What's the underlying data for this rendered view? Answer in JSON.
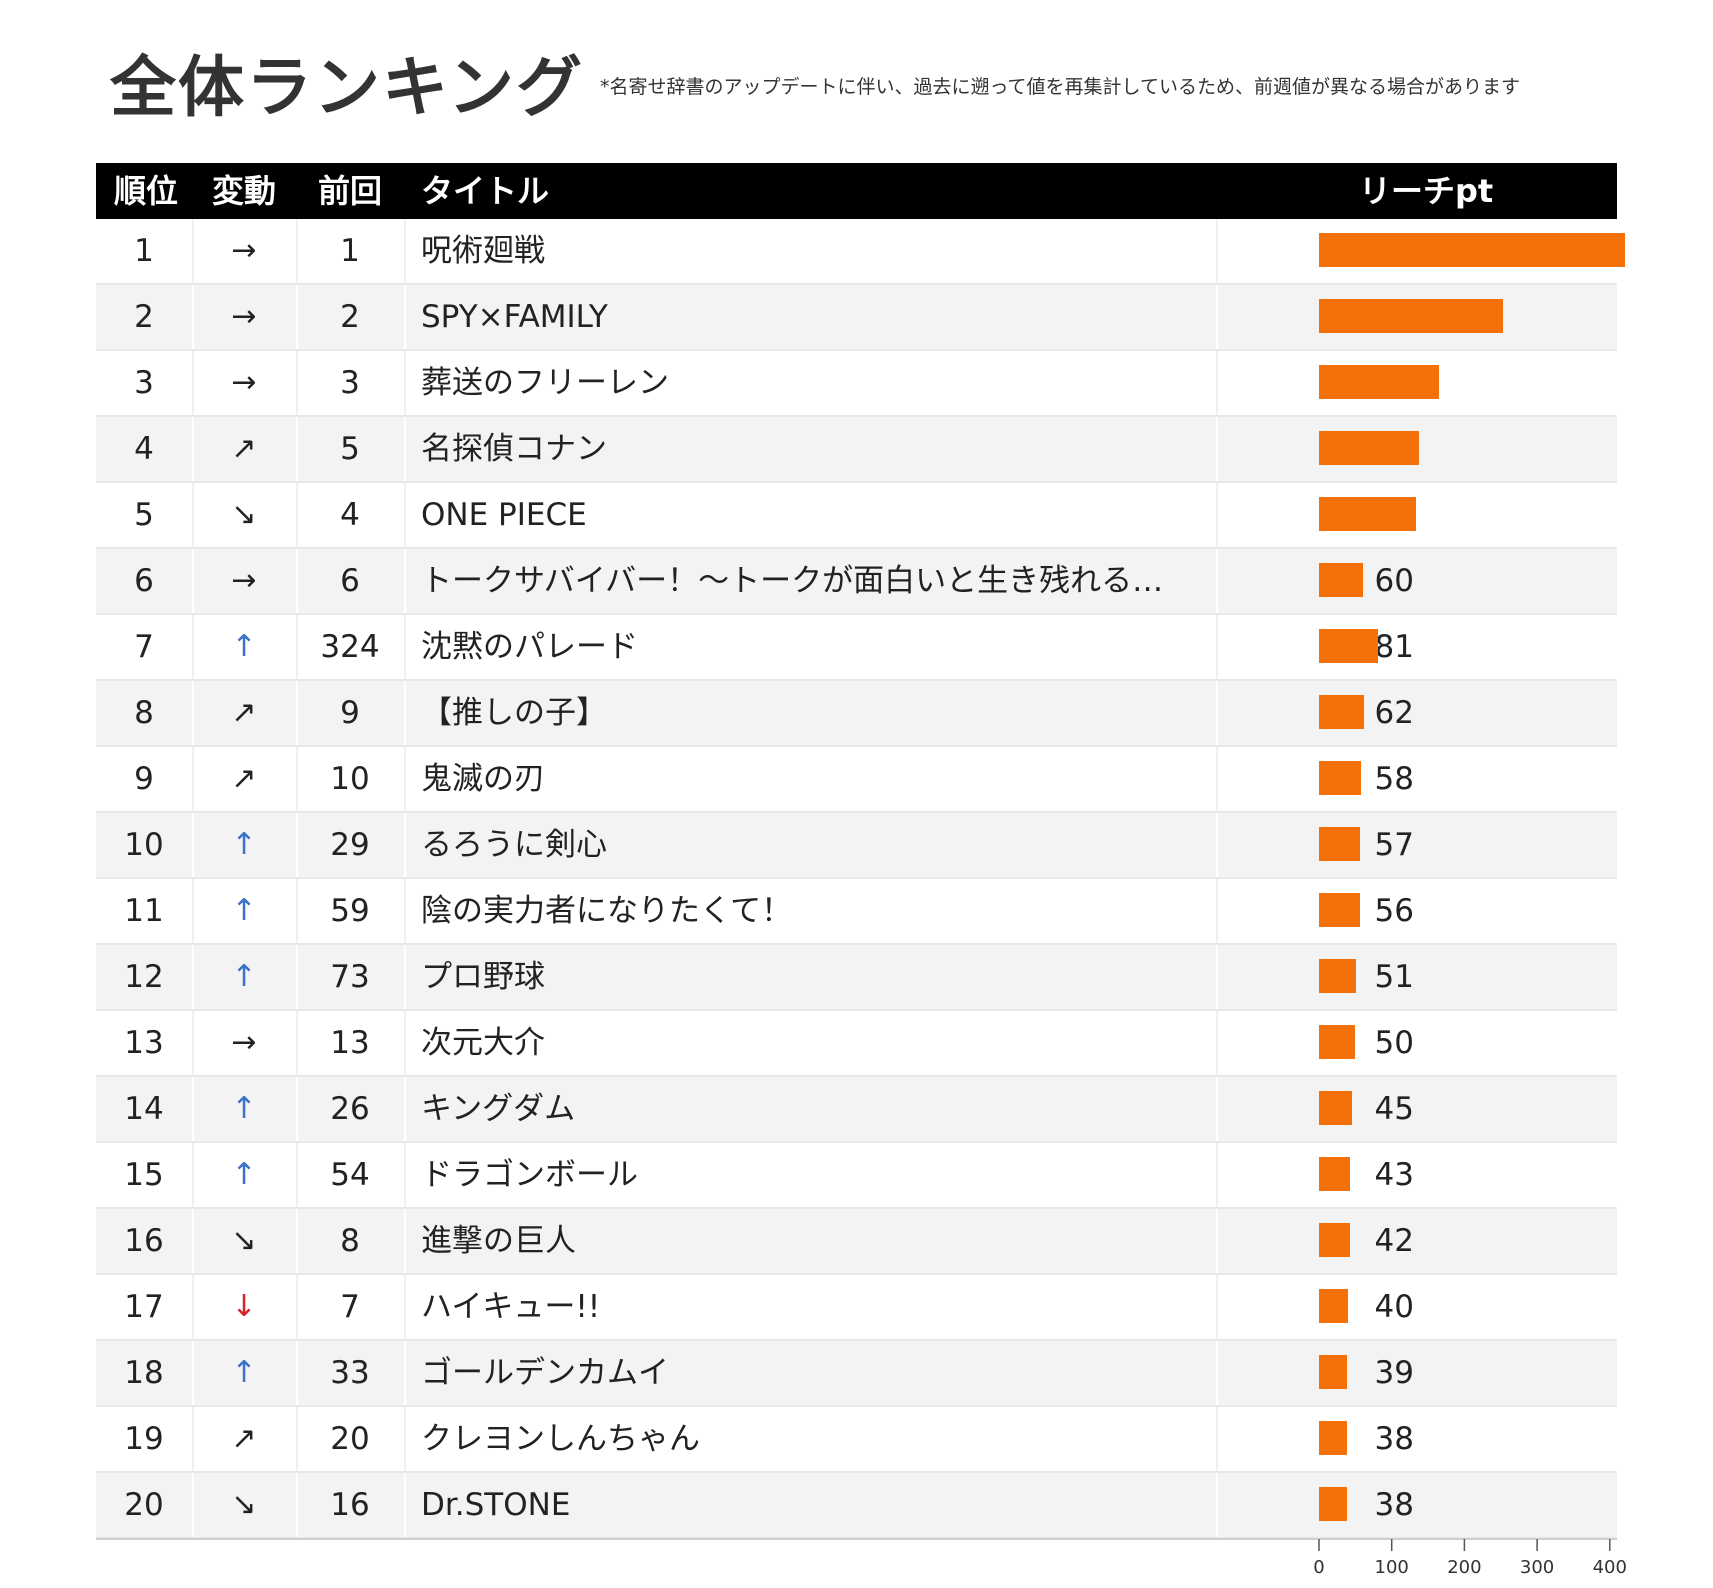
{
  "page": {
    "title": "全体ランキング",
    "note": "*名寄せ辞書のアップデートに伴い、過去に遡って値を再集計しているため、前週値が異なる場合があります"
  },
  "header": {
    "rank": "順位",
    "change": "変動",
    "previous": "前回",
    "title": "タイトル",
    "reach": "リーチpt"
  },
  "colors": {
    "bar": "#f47008",
    "up": "#3b73c8",
    "down": "#d8232a",
    "neutral": "#222222",
    "header_bg": "#000000"
  },
  "chart_data": {
    "type": "bar",
    "orientation": "horizontal",
    "title": "全体ランキング",
    "ylabel": "リーチpt",
    "xlim": [
      0,
      421
    ],
    "xticks": [
      0,
      100,
      200,
      300,
      400
    ],
    "categories": [
      "呪術廻戦",
      "SPY×FAMILY",
      "葬送のフリーレン",
      "名探偵コナン",
      "ONE PIECE",
      "トークサバイバー！～トークが面白いと生き残れる…",
      "沈黙のパレード",
      "【推しの子】",
      "鬼滅の刃",
      "るろうに剣心",
      "陰の実力者になりたくて！",
      "プロ野球",
      "次元大介",
      "キングダム",
      "ドラゴンボール",
      "進撃の巨人",
      "ハイキュー!!",
      "ゴールデンカムイ",
      "クレヨンしんちゃん",
      "Dr.STONE"
    ],
    "values": [
      421,
      253,
      165,
      138,
      133,
      60,
      81,
      62,
      58,
      57,
      56,
      51,
      50,
      45,
      43,
      42,
      40,
      39,
      38,
      38
    ]
  },
  "rows": [
    {
      "rank": "1",
      "change": "→",
      "change_type": "same",
      "prev": "1",
      "title": "呪術廻戦",
      "reach": "421"
    },
    {
      "rank": "2",
      "change": "→",
      "change_type": "same",
      "prev": "2",
      "title": "SPY×FAMILY",
      "reach": "253"
    },
    {
      "rank": "3",
      "change": "→",
      "change_type": "same",
      "prev": "3",
      "title": "葬送のフリーレン",
      "reach": "165"
    },
    {
      "rank": "4",
      "change": "↗",
      "change_type": "rise",
      "prev": "5",
      "title": "名探偵コナン",
      "reach": "138"
    },
    {
      "rank": "5",
      "change": "↘",
      "change_type": "fall",
      "prev": "4",
      "title": "ONE PIECE",
      "reach": "133"
    },
    {
      "rank": "6",
      "change": "→",
      "change_type": "same",
      "prev": "6",
      "title": "トークサバイバー！～トークが面白いと生き残れる…",
      "reach": "60"
    },
    {
      "rank": "7",
      "change": "↑",
      "change_type": "up",
      "prev": "324",
      "title": "沈黙のパレード",
      "reach": "81"
    },
    {
      "rank": "8",
      "change": "↗",
      "change_type": "rise",
      "prev": "9",
      "title": "【推しの子】",
      "reach": "62"
    },
    {
      "rank": "9",
      "change": "↗",
      "change_type": "rise",
      "prev": "10",
      "title": "鬼滅の刃",
      "reach": "58"
    },
    {
      "rank": "10",
      "change": "↑",
      "change_type": "up",
      "prev": "29",
      "title": "るろうに剣心",
      "reach": "57"
    },
    {
      "rank": "11",
      "change": "↑",
      "change_type": "up",
      "prev": "59",
      "title": "陰の実力者になりたくて！",
      "reach": "56"
    },
    {
      "rank": "12",
      "change": "↑",
      "change_type": "up",
      "prev": "73",
      "title": "プロ野球",
      "reach": "51"
    },
    {
      "rank": "13",
      "change": "→",
      "change_type": "same",
      "prev": "13",
      "title": "次元大介",
      "reach": "50"
    },
    {
      "rank": "14",
      "change": "↑",
      "change_type": "up",
      "prev": "26",
      "title": "キングダム",
      "reach": "45"
    },
    {
      "rank": "15",
      "change": "↑",
      "change_type": "up",
      "prev": "54",
      "title": "ドラゴンボール",
      "reach": "43"
    },
    {
      "rank": "16",
      "change": "↘",
      "change_type": "fall",
      "prev": "8",
      "title": "進撃の巨人",
      "reach": "42"
    },
    {
      "rank": "17",
      "change": "↓",
      "change_type": "down",
      "prev": "7",
      "title": "ハイキュー!!",
      "reach": "40"
    },
    {
      "rank": "18",
      "change": "↑",
      "change_type": "up",
      "prev": "33",
      "title": "ゴールデンカムイ",
      "reach": "39"
    },
    {
      "rank": "19",
      "change": "↗",
      "change_type": "rise",
      "prev": "20",
      "title": "クレヨンしんちゃん",
      "reach": "38"
    },
    {
      "rank": "20",
      "change": "↘",
      "change_type": "fall",
      "prev": "16",
      "title": "Dr.STONE",
      "reach": "38"
    }
  ]
}
